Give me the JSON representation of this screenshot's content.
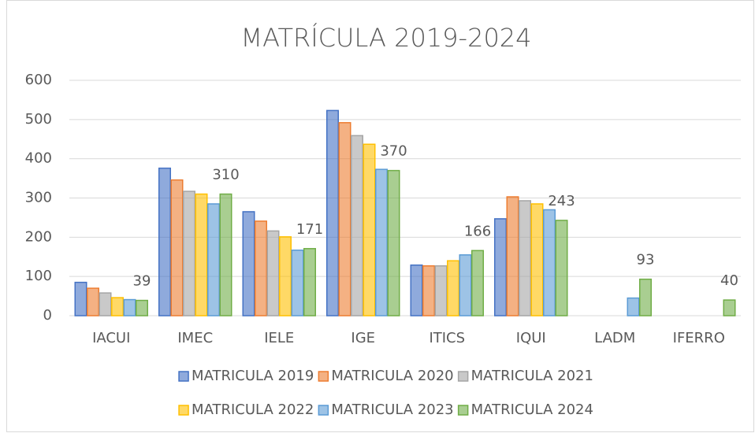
{
  "chart_data": {
    "type": "bar",
    "title": "MATRÍCULA 2019-2024",
    "categories": [
      "IACUI",
      "IMEC",
      "IELE",
      "IGE",
      "ITICS",
      "IQUI",
      "LADM",
      "IFERRO"
    ],
    "series": [
      {
        "name": "MATRICULA 2019",
        "color": "#4472c4",
        "values": [
          85,
          376,
          265,
          523,
          129,
          247,
          null,
          null
        ]
      },
      {
        "name": "MATRICULA 2020",
        "color": "#ed7d31",
        "values": [
          70,
          346,
          241,
          492,
          127,
          303,
          null,
          null
        ]
      },
      {
        "name": "MATRICULA 2021",
        "color": "#a5a5a5",
        "values": [
          58,
          317,
          216,
          459,
          127,
          293,
          null,
          null
        ]
      },
      {
        "name": "MATRICULA 2022",
        "color": "#ffc000",
        "values": [
          46,
          310,
          201,
          437,
          140,
          285,
          null,
          null
        ]
      },
      {
        "name": "MATRICULA 2023",
        "color": "#5b9bd5",
        "values": [
          41,
          285,
          167,
          373,
          155,
          270,
          45,
          null
        ]
      },
      {
        "name": "MATRICULA 2024",
        "color": "#70ad47",
        "values": [
          39,
          310,
          171,
          370,
          166,
          243,
          93,
          40
        ],
        "data_labels": true
      }
    ],
    "ylim": [
      0,
      600
    ],
    "yticks": [
      0,
      100,
      200,
      300,
      400,
      500,
      600
    ],
    "grid": true,
    "legend": "bottom"
  }
}
